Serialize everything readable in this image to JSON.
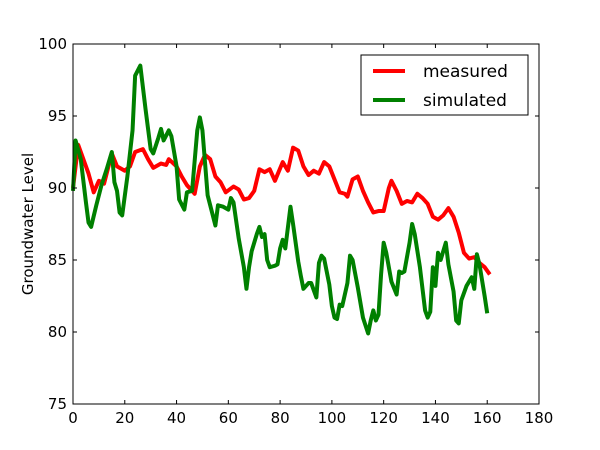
{
  "chart_data": {
    "type": "line",
    "ylabel": "Groundwater Level",
    "xlim": [
      0,
      180
    ],
    "xticks": [
      0,
      20,
      40,
      60,
      80,
      100,
      120,
      140,
      160,
      180
    ],
    "ylim": [
      75,
      100
    ],
    "yticks": [
      75,
      80,
      85,
      90,
      95,
      100
    ],
    "legend": "upper right",
    "grid": false,
    "series": [
      {
        "name": "measured",
        "color": "#ff0000",
        "x": [
          0,
          2,
          4,
          6,
          8,
          10,
          12,
          15,
          17,
          20,
          22,
          24,
          27,
          29,
          31,
          34,
          36,
          37,
          40,
          42,
          44,
          47,
          49,
          51,
          53,
          55,
          57,
          59,
          62,
          64,
          66,
          68,
          70,
          72,
          74,
          76,
          78,
          81,
          83,
          85,
          87,
          89,
          91,
          93,
          95,
          97,
          99,
          101,
          103,
          105,
          106,
          108,
          110,
          112,
          114,
          116,
          118,
          120,
          122,
          123,
          125,
          127,
          129,
          131,
          133,
          135,
          137,
          139,
          141,
          143,
          145,
          147,
          149,
          151,
          153,
          155,
          157,
          159,
          161
        ],
        "values": [
          90,
          93,
          92,
          91,
          89.7,
          90.5,
          90.3,
          92.4,
          91.5,
          91.2,
          91.5,
          92.5,
          92.7,
          92,
          91.4,
          91.7,
          91.6,
          92,
          91.5,
          90.8,
          90.2,
          89.6,
          91.5,
          92.3,
          92,
          90.8,
          90.4,
          89.7,
          90.1,
          89.9,
          89.2,
          89.3,
          89.8,
          91.3,
          91.1,
          91.3,
          90.5,
          91.8,
          91.2,
          92.8,
          92.6,
          91.5,
          90.9,
          91.2,
          91,
          91.8,
          91.5,
          90.6,
          89.7,
          89.6,
          89.4,
          90.6,
          90.8,
          89.8,
          89,
          88.3,
          88.4,
          88.4,
          90,
          90.5,
          89.8,
          88.9,
          89.1,
          89,
          89.6,
          89.3,
          88.9,
          88,
          87.8,
          88.1,
          88.6,
          88,
          86.9,
          85.5,
          85.1,
          85.2,
          84.8,
          84.5,
          84
        ]
      },
      {
        "name": "simulated",
        "color": "#008000",
        "x": [
          0,
          1,
          3,
          5,
          6,
          7,
          9,
          11,
          13,
          15,
          16,
          17,
          18,
          19,
          21,
          23,
          24,
          26,
          28,
          30,
          31,
          33,
          34,
          35,
          37,
          38,
          40,
          41,
          43,
          44,
          46,
          48,
          49,
          50,
          52,
          54,
          55,
          56,
          58,
          60,
          61,
          62,
          64,
          66,
          67,
          68,
          69,
          71,
          72,
          73,
          74,
          75,
          76,
          78,
          79,
          80,
          81,
          82,
          84,
          85,
          87,
          88,
          89,
          91,
          92,
          94,
          95,
          96,
          97,
          99,
          100,
          101,
          102,
          103,
          104,
          106,
          107,
          108,
          110,
          112,
          114,
          115,
          116,
          117,
          118,
          119,
          120,
          121,
          123,
          125,
          126,
          127,
          128,
          130,
          131,
          132,
          134,
          136,
          137,
          138,
          139,
          140,
          141,
          142,
          144,
          145,
          147,
          148,
          149,
          150,
          152,
          154,
          155,
          156,
          157,
          159,
          160
        ],
        "values": [
          89.8,
          93.3,
          92,
          89,
          87.6,
          87.3,
          88.8,
          90.2,
          91.3,
          92.5,
          90.4,
          89.8,
          88.3,
          88.1,
          90.8,
          94,
          97.8,
          98.5,
          95.5,
          92.7,
          92.4,
          93.5,
          94.1,
          93.3,
          94,
          93.6,
          91.5,
          89.2,
          88.5,
          89.7,
          89.8,
          94,
          94.9,
          94,
          89.5,
          88.1,
          87.4,
          88.8,
          88.7,
          88.5,
          89.3,
          89,
          86.5,
          84.5,
          83,
          84.5,
          85.6,
          86.8,
          87.3,
          86.6,
          86.8,
          85,
          84.5,
          84.6,
          84.7,
          85.8,
          86.4,
          85.8,
          88.7,
          87.5,
          84.9,
          83.9,
          83,
          83.4,
          83.4,
          82.4,
          84.8,
          85.3,
          85.1,
          83.3,
          81.8,
          81,
          80.9,
          81.9,
          81.8,
          83.4,
          85.3,
          85,
          83.1,
          81,
          79.9,
          80.8,
          81.5,
          80.8,
          81.2,
          84,
          86.2,
          85.5,
          83.5,
          82.6,
          84.2,
          84.1,
          84.2,
          86.2,
          87.5,
          86.8,
          84.5,
          81.5,
          81,
          81.4,
          84.5,
          83.2,
          85.5,
          85,
          86.2,
          84.7,
          82.8,
          80.8,
          80.6,
          82.2,
          83.2,
          83.8,
          83,
          85.4,
          84.7,
          82.5,
          81.3
        ]
      }
    ]
  }
}
